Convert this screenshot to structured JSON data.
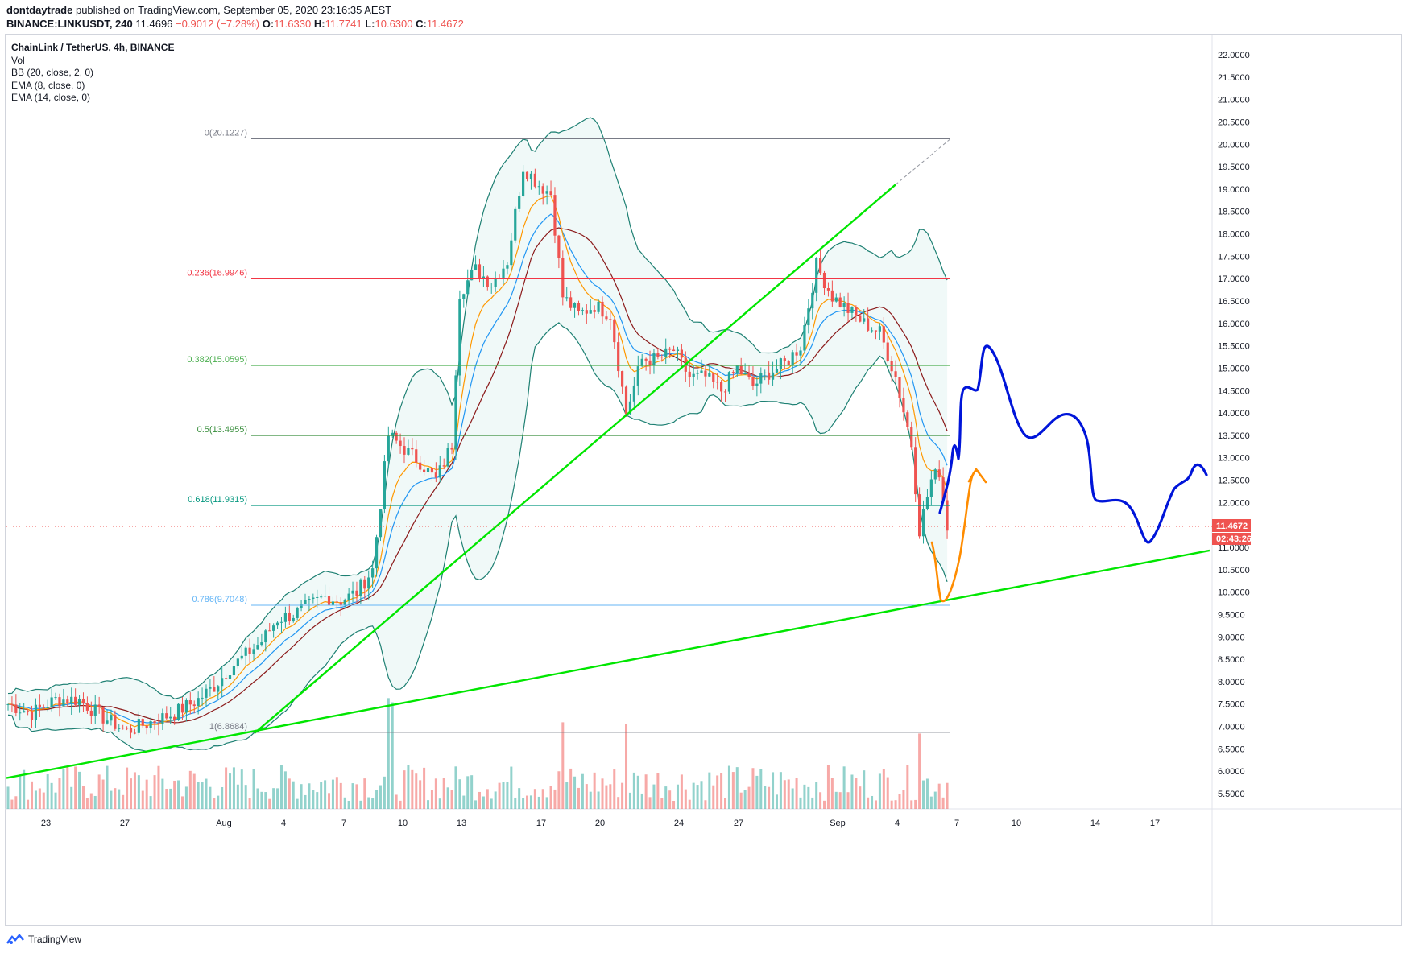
{
  "header": {
    "author": "dontdaytrade",
    "published_text": "published on TradingView.com, September 05, 2020 23:16:35 AEST",
    "symbol": "BINANCE:LINKUSDT, 240",
    "last": "11.4696",
    "change": "−0.9012 (−7.28%)",
    "o_label": "O:",
    "o_value": "11.6330",
    "h_label": "H:",
    "h_value": "11.7741",
    "l_label": "L:",
    "l_value": "10.6300",
    "c_label": "C:",
    "c_value": "11.4672"
  },
  "legend": {
    "title": "ChainLink / TetherUS, 4h, BINANCE",
    "vol": "Vol",
    "bb": "BB (20, close, 2, 0)",
    "ema8": "EMA (8, close, 0)",
    "ema14": "EMA (14, close, 0)"
  },
  "footer": {
    "brand": "TradingView",
    "logo_icon": "tradingview-logo-icon"
  },
  "colors": {
    "up": "#26a69a",
    "down": "#ef5350",
    "bb": "#1e8073",
    "bb_fill": "rgba(38,166,154,0.07)",
    "ema8": "#ff9800",
    "ema14": "#2196f3",
    "bb_basis": "#8b1a1a",
    "trend": "#00e600",
    "blue_path": "#0015d9",
    "orange_path": "#ff8c00"
  },
  "chart_data": {
    "type": "candlestick",
    "symbol": "LINKUSDT",
    "interval": "4h",
    "ylim": [
      5.0,
      22.2
    ],
    "y_ticks": [
      "22.0000",
      "21.5000",
      "21.0000",
      "20.5000",
      "20.0000",
      "19.5000",
      "19.0000",
      "18.5000",
      "18.0000",
      "17.5000",
      "17.0000",
      "16.5000",
      "16.0000",
      "15.5000",
      "15.0000",
      "14.5000",
      "14.0000",
      "13.5000",
      "13.0000",
      "12.5000",
      "12.0000",
      "11.5000",
      "11.0000",
      "10.5000",
      "10.0000",
      "9.5000",
      "9.0000",
      "8.5000",
      "8.0000",
      "7.5000",
      "7.0000",
      "6.5000",
      "6.0000",
      "5.5000"
    ],
    "x_ticks": [
      "23",
      "27",
      "Aug",
      "4",
      "7",
      "10",
      "13",
      "17",
      "20",
      "24",
      "27",
      "Sep",
      "4",
      "7",
      "10",
      "14",
      "17"
    ],
    "last_price": "11.4672",
    "countdown": "02:43:26",
    "fib_levels": [
      {
        "label": "0(20.1227)",
        "price": 20.1227,
        "color": "#787b86"
      },
      {
        "label": "0.236(16.9946)",
        "price": 16.9946,
        "color": "#f23645"
      },
      {
        "label": "0.382(15.0595)",
        "price": 15.0595,
        "color": "#4caf50"
      },
      {
        "label": "0.5(13.4955)",
        "price": 13.4955,
        "color": "#388e3c"
      },
      {
        "label": "0.618(11.9315)",
        "price": 11.9315,
        "color": "#089981"
      },
      {
        "label": "0.786(9.7048)",
        "price": 9.7048,
        "color": "#64b5f6"
      },
      {
        "label": "1(6.8684)",
        "price": 6.8684,
        "color": "#787b86"
      }
    ],
    "price_path": [
      [
        0,
        7.5
      ],
      [
        6,
        7.3
      ],
      [
        12,
        7.6
      ],
      [
        18,
        7.6
      ],
      [
        24,
        7.2
      ],
      [
        30,
        6.9
      ],
      [
        36,
        7.1
      ],
      [
        42,
        7.3
      ],
      [
        48,
        7.6
      ],
      [
        52,
        7.9
      ],
      [
        56,
        8.3
      ],
      [
        60,
        8.6
      ],
      [
        64,
        8.9
      ],
      [
        68,
        9.4
      ],
      [
        72,
        9.5
      ],
      [
        76,
        9.7
      ],
      [
        80,
        9.9
      ],
      [
        84,
        9.8
      ],
      [
        88,
        10.0
      ],
      [
        92,
        10.5
      ],
      [
        96,
        13.5
      ],
      [
        100,
        13.2
      ],
      [
        104,
        12.9
      ],
      [
        108,
        12.5
      ],
      [
        112,
        13.3
      ],
      [
        114,
        16.7
      ],
      [
        118,
        17.2
      ],
      [
        122,
        16.9
      ],
      [
        126,
        17.4
      ],
      [
        130,
        19.5
      ],
      [
        134,
        19.1
      ],
      [
        137,
        18.9
      ],
      [
        140,
        16.6
      ],
      [
        144,
        16.2
      ],
      [
        148,
        16.4
      ],
      [
        152,
        16.2
      ],
      [
        156,
        14.0
      ],
      [
        160,
        15.2
      ],
      [
        164,
        15.2
      ],
      [
        168,
        15.4
      ],
      [
        172,
        14.8
      ],
      [
        176,
        14.8
      ],
      [
        180,
        14.5
      ],
      [
        184,
        15.0
      ],
      [
        188,
        14.6
      ],
      [
        192,
        14.9
      ],
      [
        196,
        15.1
      ],
      [
        200,
        15.5
      ],
      [
        204,
        17.3
      ],
      [
        208,
        16.6
      ],
      [
        212,
        16.3
      ],
      [
        216,
        16.0
      ],
      [
        220,
        15.8
      ],
      [
        224,
        14.8
      ],
      [
        228,
        13.3
      ],
      [
        230,
        11.4
      ],
      [
        233,
        12.5
      ],
      [
        235,
        12.7
      ],
      [
        237,
        11.47
      ]
    ]
  }
}
